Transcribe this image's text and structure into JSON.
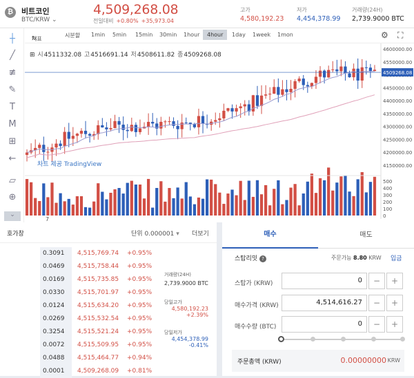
{
  "header": {
    "coin_name": "비트코인",
    "pair": "BTC/KRW",
    "price": "4,509,268.08",
    "change_label": "전일대비",
    "change_pct": "+0.80%",
    "change_amt": "+35,973.04",
    "high_label": "고가",
    "high": "4,580,192.23",
    "low_label": "저가",
    "low": "4,454,378.99",
    "vol_label": "거래량(24H)",
    "vol": "2,739.9000 BTC"
  },
  "toolbar": {
    "indicators": "지표",
    "tick": "시분할",
    "intervals": [
      "1min",
      "5min",
      "15min",
      "30min",
      "1hour",
      "4hour",
      "1day",
      "1week",
      "1mon"
    ],
    "active": "4hour"
  },
  "ohlc": {
    "o_label": "시",
    "o": "4511332.08",
    "h_label": "고",
    "h": "4516691.14",
    "l_label": "저",
    "l": "4508611.82",
    "c_label": "종",
    "c": "4509268.08"
  },
  "chart": {
    "watermark": "차트 제공 TradingView",
    "last_price": "4509268.08",
    "y_ticks": [
      "4600000.00",
      "4550000.00",
      "4500000.00",
      "4450000.00",
      "4400000.00",
      "4350000.00",
      "4300000.00",
      "4250000.00",
      "4200000.00",
      "4150000.00"
    ],
    "vol_ticks": [
      "500",
      "400",
      "300",
      "200",
      "100",
      "0"
    ],
    "x_label": "7"
  },
  "chart_data": {
    "type": "candlestick",
    "title": "",
    "ylim": [
      4150000,
      4600000
    ],
    "last": 4509268.08,
    "volume_ylim": [
      0,
      500
    ]
  },
  "orderbook": {
    "title": "호가창",
    "unit_label": "단위",
    "unit_value": "0.000001",
    "more": "더보기",
    "rows": [
      {
        "qty": "0.3091",
        "price": "4,515,769.74",
        "pct": "+0.95%"
      },
      {
        "qty": "0.0469",
        "price": "4,515,758.44",
        "pct": "+0.95%"
      },
      {
        "qty": "0.0169",
        "price": "4,515,735.85",
        "pct": "+0.95%"
      },
      {
        "qty": "0.0330",
        "price": "4,515,701.97",
        "pct": "+0.95%"
      },
      {
        "qty": "0.0124",
        "price": "4,515,634.20",
        "pct": "+0.95%"
      },
      {
        "qty": "0.0269",
        "price": "4,515,532.54",
        "pct": "+0.95%"
      },
      {
        "qty": "0.3254",
        "price": "4,515,521.24",
        "pct": "+0.95%"
      },
      {
        "qty": "0.0072",
        "price": "4,515,509.95",
        "pct": "+0.95%"
      },
      {
        "qty": "0.0488",
        "price": "4,515,464.77",
        "pct": "+0.94%"
      },
      {
        "qty": "0.0001",
        "price": "4,509,268.09",
        "pct": "+0.81%"
      }
    ],
    "side": {
      "vol_label": "거래량(24H)",
      "vol": "2,739.9000 BTC",
      "high_label": "당일고가",
      "high": "4,580,192.23",
      "high_pct": "+2.39%",
      "low_label": "당일저가",
      "low": "4,454,378.99",
      "low_pct": "-0.41%"
    }
  },
  "trade": {
    "buy_tab": "매수",
    "sell_tab": "매도",
    "type": "스탑리밋",
    "avail_label": "주문가능",
    "avail": "8.80",
    "avail_unit": "KRW",
    "deposit": "입금",
    "stop_label": "스탑가 (KRW)",
    "stop_val": "0",
    "buy_price_label": "매수가격 (KRW)",
    "buy_price_val": "4,514,616.27",
    "qty_label": "매수수량 (BTC)",
    "qty_val": "0",
    "total_label": "주문총액 (KRW)",
    "total_val": "0.00000000",
    "total_unit": "KRW"
  }
}
